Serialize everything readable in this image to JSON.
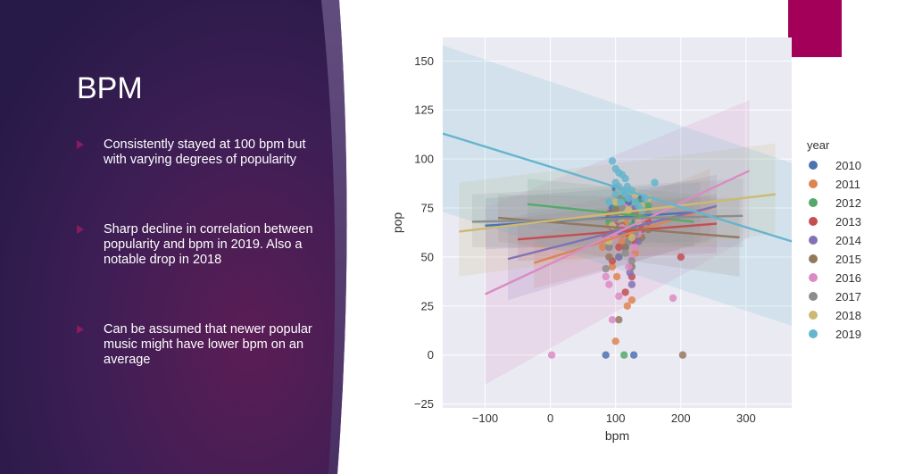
{
  "slide": {
    "title": "BPM",
    "bullets": [
      "Consistently stayed at 100 bpm but with varying degrees of popularity",
      "Sharp decline in correlation between popularity and bpm in 2019. Also a notable drop in 2018",
      "Can be assumed that newer popular music might have lower bpm on an average"
    ],
    "colors": {
      "panel": "#3a1c4d",
      "accent": "#a3005a",
      "bullet": "#8a1b5d"
    }
  },
  "chart_data": {
    "type": "scatter",
    "xlabel": "bpm",
    "ylabel": "pop",
    "xlim": [
      -165,
      370
    ],
    "ylim": [
      -27,
      162
    ],
    "xticks": [
      -100,
      0,
      100,
      200,
      300
    ],
    "yticks": [
      -25,
      0,
      25,
      50,
      75,
      100,
      125,
      150
    ],
    "xtick_labels": [
      "−100",
      "0",
      "100",
      "200",
      "300"
    ],
    "ytick_labels": [
      "−25",
      "0",
      "25",
      "50",
      "75",
      "100",
      "125",
      "150"
    ],
    "grid": true,
    "legend": {
      "title": "year",
      "placement": "right"
    },
    "series": [
      {
        "name": "2010",
        "color": "#4c72b0",
        "points": [
          [
            120,
            78
          ],
          [
            110,
            72
          ],
          [
            95,
            75
          ],
          [
            130,
            68
          ],
          [
            100,
            65
          ],
          [
            140,
            80
          ],
          [
            90,
            70
          ],
          [
            125,
            60
          ],
          [
            105,
            62
          ],
          [
            115,
            55
          ],
          [
            85,
            0
          ],
          [
            128,
            0
          ],
          [
            100,
            85
          ],
          [
            135,
            75
          ]
        ],
        "line": [
          [
            -100,
            66
          ],
          [
            230,
            73
          ]
        ],
        "band": [
          [
            -100,
            54,
            80
          ],
          [
            230,
            58,
            88
          ]
        ]
      },
      {
        "name": "2011",
        "color": "#dd8452",
        "points": [
          [
            100,
            7
          ],
          [
            125,
            28
          ],
          [
            95,
            45
          ],
          [
            130,
            52
          ],
          [
            110,
            58
          ],
          [
            120,
            60
          ],
          [
            90,
            66
          ],
          [
            140,
            65
          ],
          [
            105,
            72
          ],
          [
            115,
            68
          ],
          [
            80,
            55
          ],
          [
            150,
            70
          ],
          [
            118,
            25
          ],
          [
            102,
            40
          ]
        ],
        "line": [
          [
            -25,
            47
          ],
          [
            245,
            75
          ]
        ],
        "band": [
          [
            -25,
            34,
            60
          ],
          [
            245,
            58,
            95
          ]
        ]
      },
      {
        "name": "2012",
        "color": "#55a868",
        "points": [
          [
            113,
            0
          ],
          [
            120,
            72
          ],
          [
            100,
            75
          ],
          [
            130,
            70
          ],
          [
            90,
            68
          ],
          [
            140,
            74
          ],
          [
            110,
            80
          ],
          [
            125,
            66
          ],
          [
            95,
            62
          ],
          [
            135,
            78
          ],
          [
            105,
            50
          ],
          [
            150,
            76
          ]
        ],
        "line": [
          [
            -35,
            77
          ],
          [
            220,
            68
          ]
        ],
        "band": [
          [
            -35,
            65,
            90
          ],
          [
            220,
            55,
            82
          ]
        ]
      },
      {
        "name": "2013",
        "color": "#c44e52",
        "points": [
          [
            200,
            50
          ],
          [
            120,
            62
          ],
          [
            100,
            66
          ],
          [
            130,
            58
          ],
          [
            90,
            72
          ],
          [
            110,
            70
          ],
          [
            140,
            64
          ],
          [
            95,
            48
          ],
          [
            125,
            40
          ],
          [
            105,
            55
          ],
          [
            150,
            68
          ],
          [
            115,
            32
          ]
        ],
        "line": [
          [
            -50,
            59
          ],
          [
            255,
            67
          ]
        ],
        "band": [
          [
            -50,
            48,
            70
          ],
          [
            255,
            52,
            82
          ]
        ]
      },
      {
        "name": "2014",
        "color": "#8172b3",
        "points": [
          [
            122,
            42
          ],
          [
            100,
            70
          ],
          [
            110,
            62
          ],
          [
            130,
            75
          ],
          [
            90,
            55
          ],
          [
            140,
            68
          ],
          [
            105,
            50
          ],
          [
            120,
            80
          ],
          [
            95,
            65
          ],
          [
            135,
            58
          ],
          [
            115,
            72
          ],
          [
            125,
            36
          ]
        ],
        "line": [
          [
            -65,
            49
          ],
          [
            255,
            76
          ]
        ],
        "band": [
          [
            -65,
            28,
            70
          ],
          [
            255,
            60,
            92
          ]
        ]
      },
      {
        "name": "2015",
        "color": "#937860",
        "points": [
          [
            203,
            0
          ],
          [
            105,
            18
          ],
          [
            120,
            58
          ],
          [
            95,
            62
          ],
          [
            130,
            72
          ],
          [
            110,
            66
          ],
          [
            140,
            60
          ],
          [
            90,
            50
          ],
          [
            125,
            45
          ],
          [
            100,
            74
          ],
          [
            150,
            64
          ],
          [
            115,
            55
          ],
          [
            85,
            60
          ]
        ],
        "line": [
          [
            -80,
            70
          ],
          [
            290,
            60
          ]
        ],
        "band": [
          [
            -80,
            58,
            82
          ],
          [
            290,
            40,
            80
          ]
        ]
      },
      {
        "name": "2016",
        "color": "#da8bc3",
        "points": [
          [
            2,
            0
          ],
          [
            188,
            29
          ],
          [
            95,
            18
          ],
          [
            120,
            45
          ],
          [
            90,
            36
          ],
          [
            100,
            60
          ],
          [
            130,
            55
          ],
          [
            110,
            65
          ],
          [
            140,
            70
          ],
          [
            85,
            40
          ],
          [
            125,
            50
          ],
          [
            105,
            30
          ],
          [
            115,
            75
          ],
          [
            135,
            62
          ]
        ],
        "line": [
          [
            -100,
            31
          ],
          [
            305,
            94
          ]
        ],
        "band": [
          [
            -100,
            -15,
            75
          ],
          [
            305,
            60,
            130
          ]
        ]
      },
      {
        "name": "2017",
        "color": "#8c8c8c",
        "points": [
          [
            100,
            65
          ],
          [
            120,
            58
          ],
          [
            95,
            70
          ],
          [
            130,
            62
          ],
          [
            110,
            75
          ],
          [
            140,
            68
          ],
          [
            90,
            55
          ],
          [
            125,
            48
          ],
          [
            105,
            80
          ],
          [
            115,
            52
          ],
          [
            85,
            44
          ],
          [
            150,
            72
          ]
        ],
        "line": [
          [
            -120,
            68
          ],
          [
            295,
            71
          ]
        ],
        "band": [
          [
            -120,
            55,
            82
          ],
          [
            295,
            55,
            90
          ]
        ]
      },
      {
        "name": "2018",
        "color": "#ccb974",
        "points": [
          [
            120,
            74
          ],
          [
            100,
            78
          ],
          [
            130,
            82
          ],
          [
            110,
            70
          ],
          [
            140,
            76
          ],
          [
            95,
            66
          ],
          [
            125,
            60
          ],
          [
            105,
            84
          ],
          [
            115,
            72
          ],
          [
            150,
            80
          ],
          [
            90,
            58
          ],
          [
            135,
            68
          ]
        ],
        "line": [
          [
            -140,
            63
          ],
          [
            345,
            82
          ]
        ],
        "band": [
          [
            -140,
            40,
            88
          ],
          [
            345,
            62,
            108
          ]
        ]
      },
      {
        "name": "2019",
        "color": "#64b5cd",
        "points": [
          [
            95,
            99
          ],
          [
            100,
            95
          ],
          [
            105,
            93
          ],
          [
            110,
            92
          ],
          [
            115,
            90
          ],
          [
            100,
            88
          ],
          [
            105,
            86
          ],
          [
            110,
            84
          ],
          [
            115,
            82
          ],
          [
            120,
            80
          ],
          [
            125,
            84
          ],
          [
            130,
            78
          ],
          [
            135,
            76
          ],
          [
            100,
            82
          ],
          [
            90,
            78
          ],
          [
            160,
            88
          ],
          [
            145,
            80
          ],
          [
            140,
            74
          ],
          [
            108,
            78
          ],
          [
            118,
            86
          ]
        ],
        "line": [
          [
            -165,
            113
          ],
          [
            370,
            58
          ]
        ],
        "band": [
          [
            -165,
            73,
            158
          ],
          [
            370,
            15,
            98
          ]
        ]
      }
    ]
  }
}
